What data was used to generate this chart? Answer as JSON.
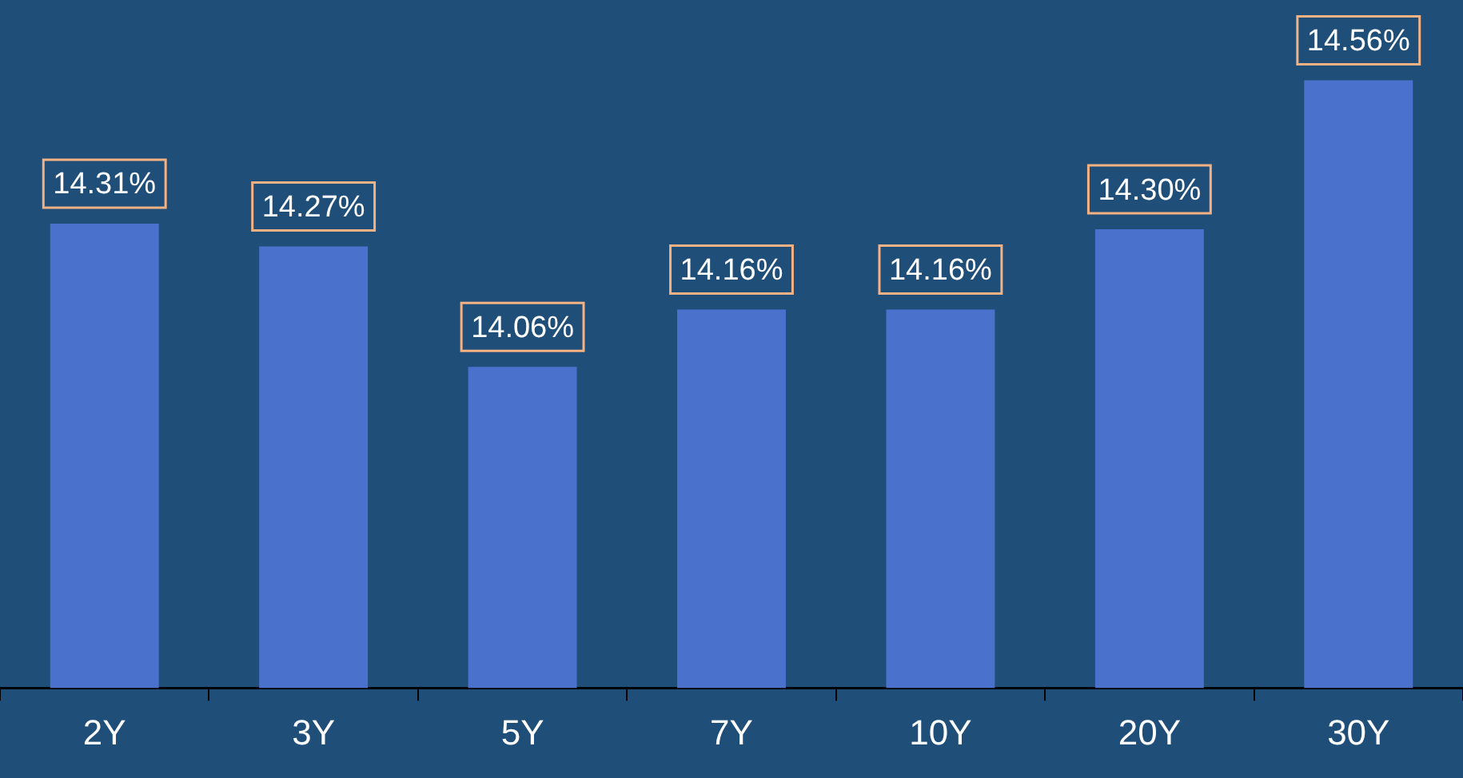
{
  "chart_data": {
    "type": "bar",
    "categories": [
      "2Y",
      "3Y",
      "5Y",
      "7Y",
      "10Y",
      "20Y",
      "30Y"
    ],
    "values": [
      14.31,
      14.27,
      14.06,
      14.16,
      14.16,
      14.3,
      14.56
    ],
    "value_labels": [
      "14.31%",
      "14.27%",
      "14.06%",
      "14.16%",
      "14.16%",
      "14.30%",
      "14.56%"
    ],
    "color": "#4a72cc",
    "ylim": [
      13.5,
      14.7
    ],
    "tick_labels": "x",
    "grid": false,
    "legend": false
  }
}
